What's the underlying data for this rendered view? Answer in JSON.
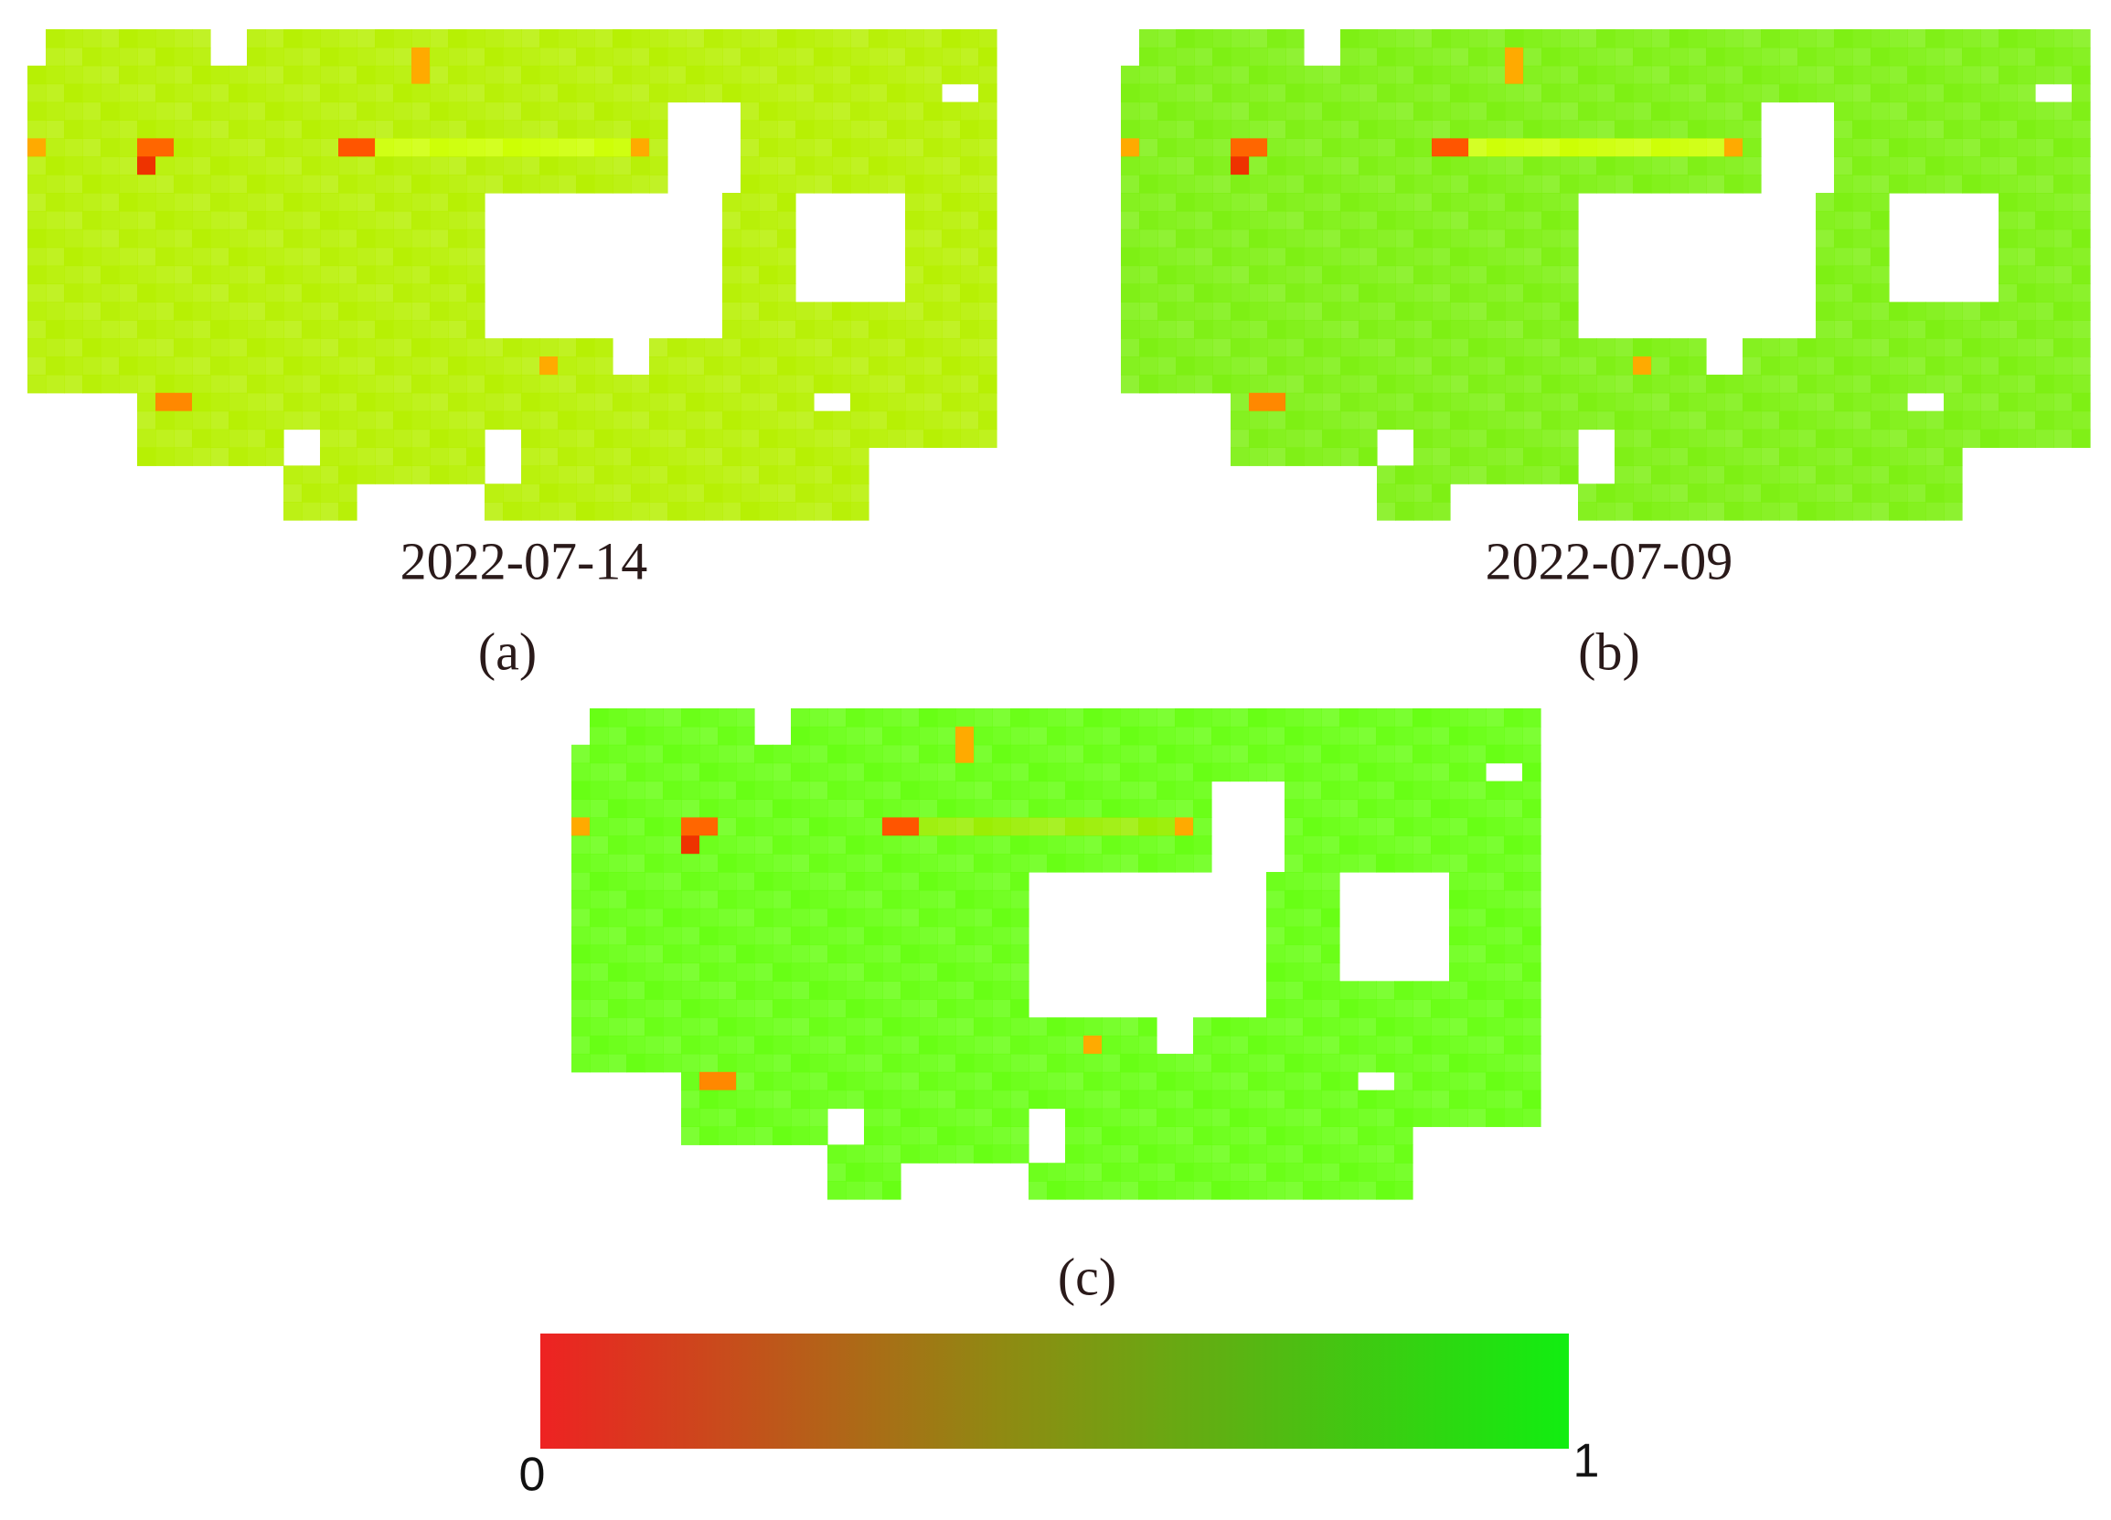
{
  "panels": [
    {
      "date": "2022-07-14",
      "label": "(a)"
    },
    {
      "date": "2022-07-09",
      "label": "(b)"
    },
    {
      "label": "(c)"
    }
  ],
  "colorbar": {
    "ticks": [
      0,
      1
    ]
  }
}
